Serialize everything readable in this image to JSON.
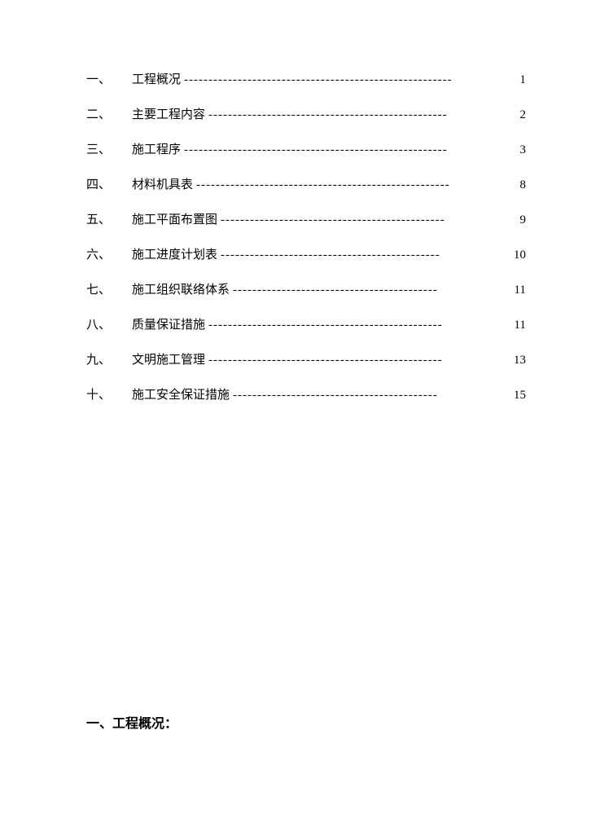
{
  "document": {
    "background_color": "#ffffff",
    "text_color": "#000000",
    "font_family": "SimSun",
    "toc_fontsize": 15,
    "heading_fontsize": 16
  },
  "toc": {
    "items": [
      {
        "number": "一、",
        "title": "工程概况",
        "dots": "-------------------------------------------------------",
        "page": "1",
        "spaced": false
      },
      {
        "number": "二、",
        "title": "主要工程内容",
        "dots": "-------------------------------------------------",
        "page": "2",
        "spaced": false
      },
      {
        "number": "三、",
        "title": "施工程序",
        "dots": "------------------------------------------------------",
        "page": "3",
        "spaced": true
      },
      {
        "number": "四、",
        "title": "材料机具表",
        "dots": "----------------------------------------------------",
        "page": "8",
        "spaced": false
      },
      {
        "number": "五、",
        "title": "施工平面布置图",
        "dots": "----------------------------------------------",
        "page": "9",
        "spaced": false
      },
      {
        "number": "六、",
        "title": "施工进度计划表",
        "dots": "---------------------------------------------",
        "page": "10",
        "spaced": false
      },
      {
        "number": "七、",
        "title": "施工组织联络体系",
        "dots": "------------------------------------------",
        "page": "11",
        "spaced": false
      },
      {
        "number": "八、",
        "title": "质量保证措施",
        "dots": "------------------------------------------------",
        "page": "11",
        "spaced": false
      },
      {
        "number": "九、",
        "title": "文明施工管理",
        "dots": "------------------------------------------------",
        "page": "13",
        "spaced": false
      },
      {
        "number": "十、",
        "title": "施工安全保证措施",
        "dots": "------------------------------------------",
        "page": "15",
        "spaced": false
      }
    ]
  },
  "heading": {
    "text": "一、工程概况："
  }
}
